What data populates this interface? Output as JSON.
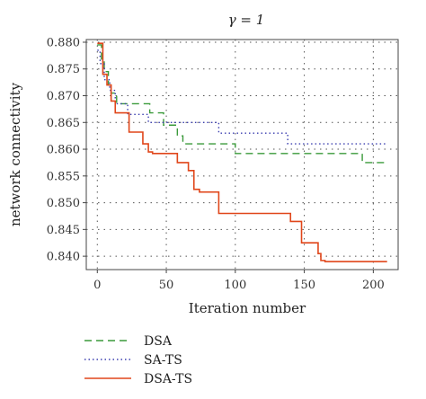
{
  "chart_data": {
    "type": "line",
    "title": "γ = 1",
    "xlabel": "Iteration number",
    "ylabel": "network connectivity",
    "xlim": [
      -8,
      218
    ],
    "ylim": [
      0.8375,
      0.8805
    ],
    "xticks": [
      0,
      50,
      100,
      150,
      200
    ],
    "yticks": [
      0.84,
      0.845,
      0.85,
      0.855,
      0.86,
      0.865,
      0.87,
      0.875,
      0.88
    ],
    "ytick_labels": [
      "0.840",
      "0.845",
      "0.850",
      "0.855",
      "0.860",
      "0.865",
      "0.870",
      "0.875",
      "0.880"
    ],
    "grid": true,
    "legend_placement": "below",
    "series": [
      {
        "name": "DSA",
        "color": "#3a9a3a",
        "style": "dashed",
        "x": [
          0,
          3,
          5,
          8,
          10,
          14,
          31,
          38,
          45,
          48,
          58,
          62,
          100,
          192,
          210
        ],
        "y": [
          0.8795,
          0.8765,
          0.8745,
          0.872,
          0.8705,
          0.8685,
          0.8685,
          0.8668,
          0.8668,
          0.8645,
          0.8625,
          0.861,
          0.8592,
          0.8575,
          0.8575
        ]
      },
      {
        "name": "SA-TS",
        "color": "#3b3fb0",
        "style": "dotted",
        "x": [
          0,
          2,
          5,
          9,
          13,
          22,
          34,
          37,
          88,
          138,
          210
        ],
        "y": [
          0.8785,
          0.876,
          0.873,
          0.871,
          0.8685,
          0.8665,
          0.8665,
          0.865,
          0.863,
          0.861,
          0.861
        ]
      },
      {
        "name": "DSA-TS",
        "color": "#e0461a",
        "style": "solid",
        "x": [
          0,
          4,
          7,
          10,
          13,
          23,
          33,
          37,
          40,
          58,
          66,
          70,
          74,
          88,
          100,
          140,
          148,
          151,
          160,
          162,
          165,
          210
        ],
        "y": [
          0.8798,
          0.874,
          0.872,
          0.869,
          0.8668,
          0.8632,
          0.861,
          0.8595,
          0.8592,
          0.8575,
          0.856,
          0.8525,
          0.852,
          0.848,
          0.848,
          0.8465,
          0.8425,
          0.8425,
          0.8405,
          0.8392,
          0.839,
          0.839
        ]
      }
    ]
  }
}
